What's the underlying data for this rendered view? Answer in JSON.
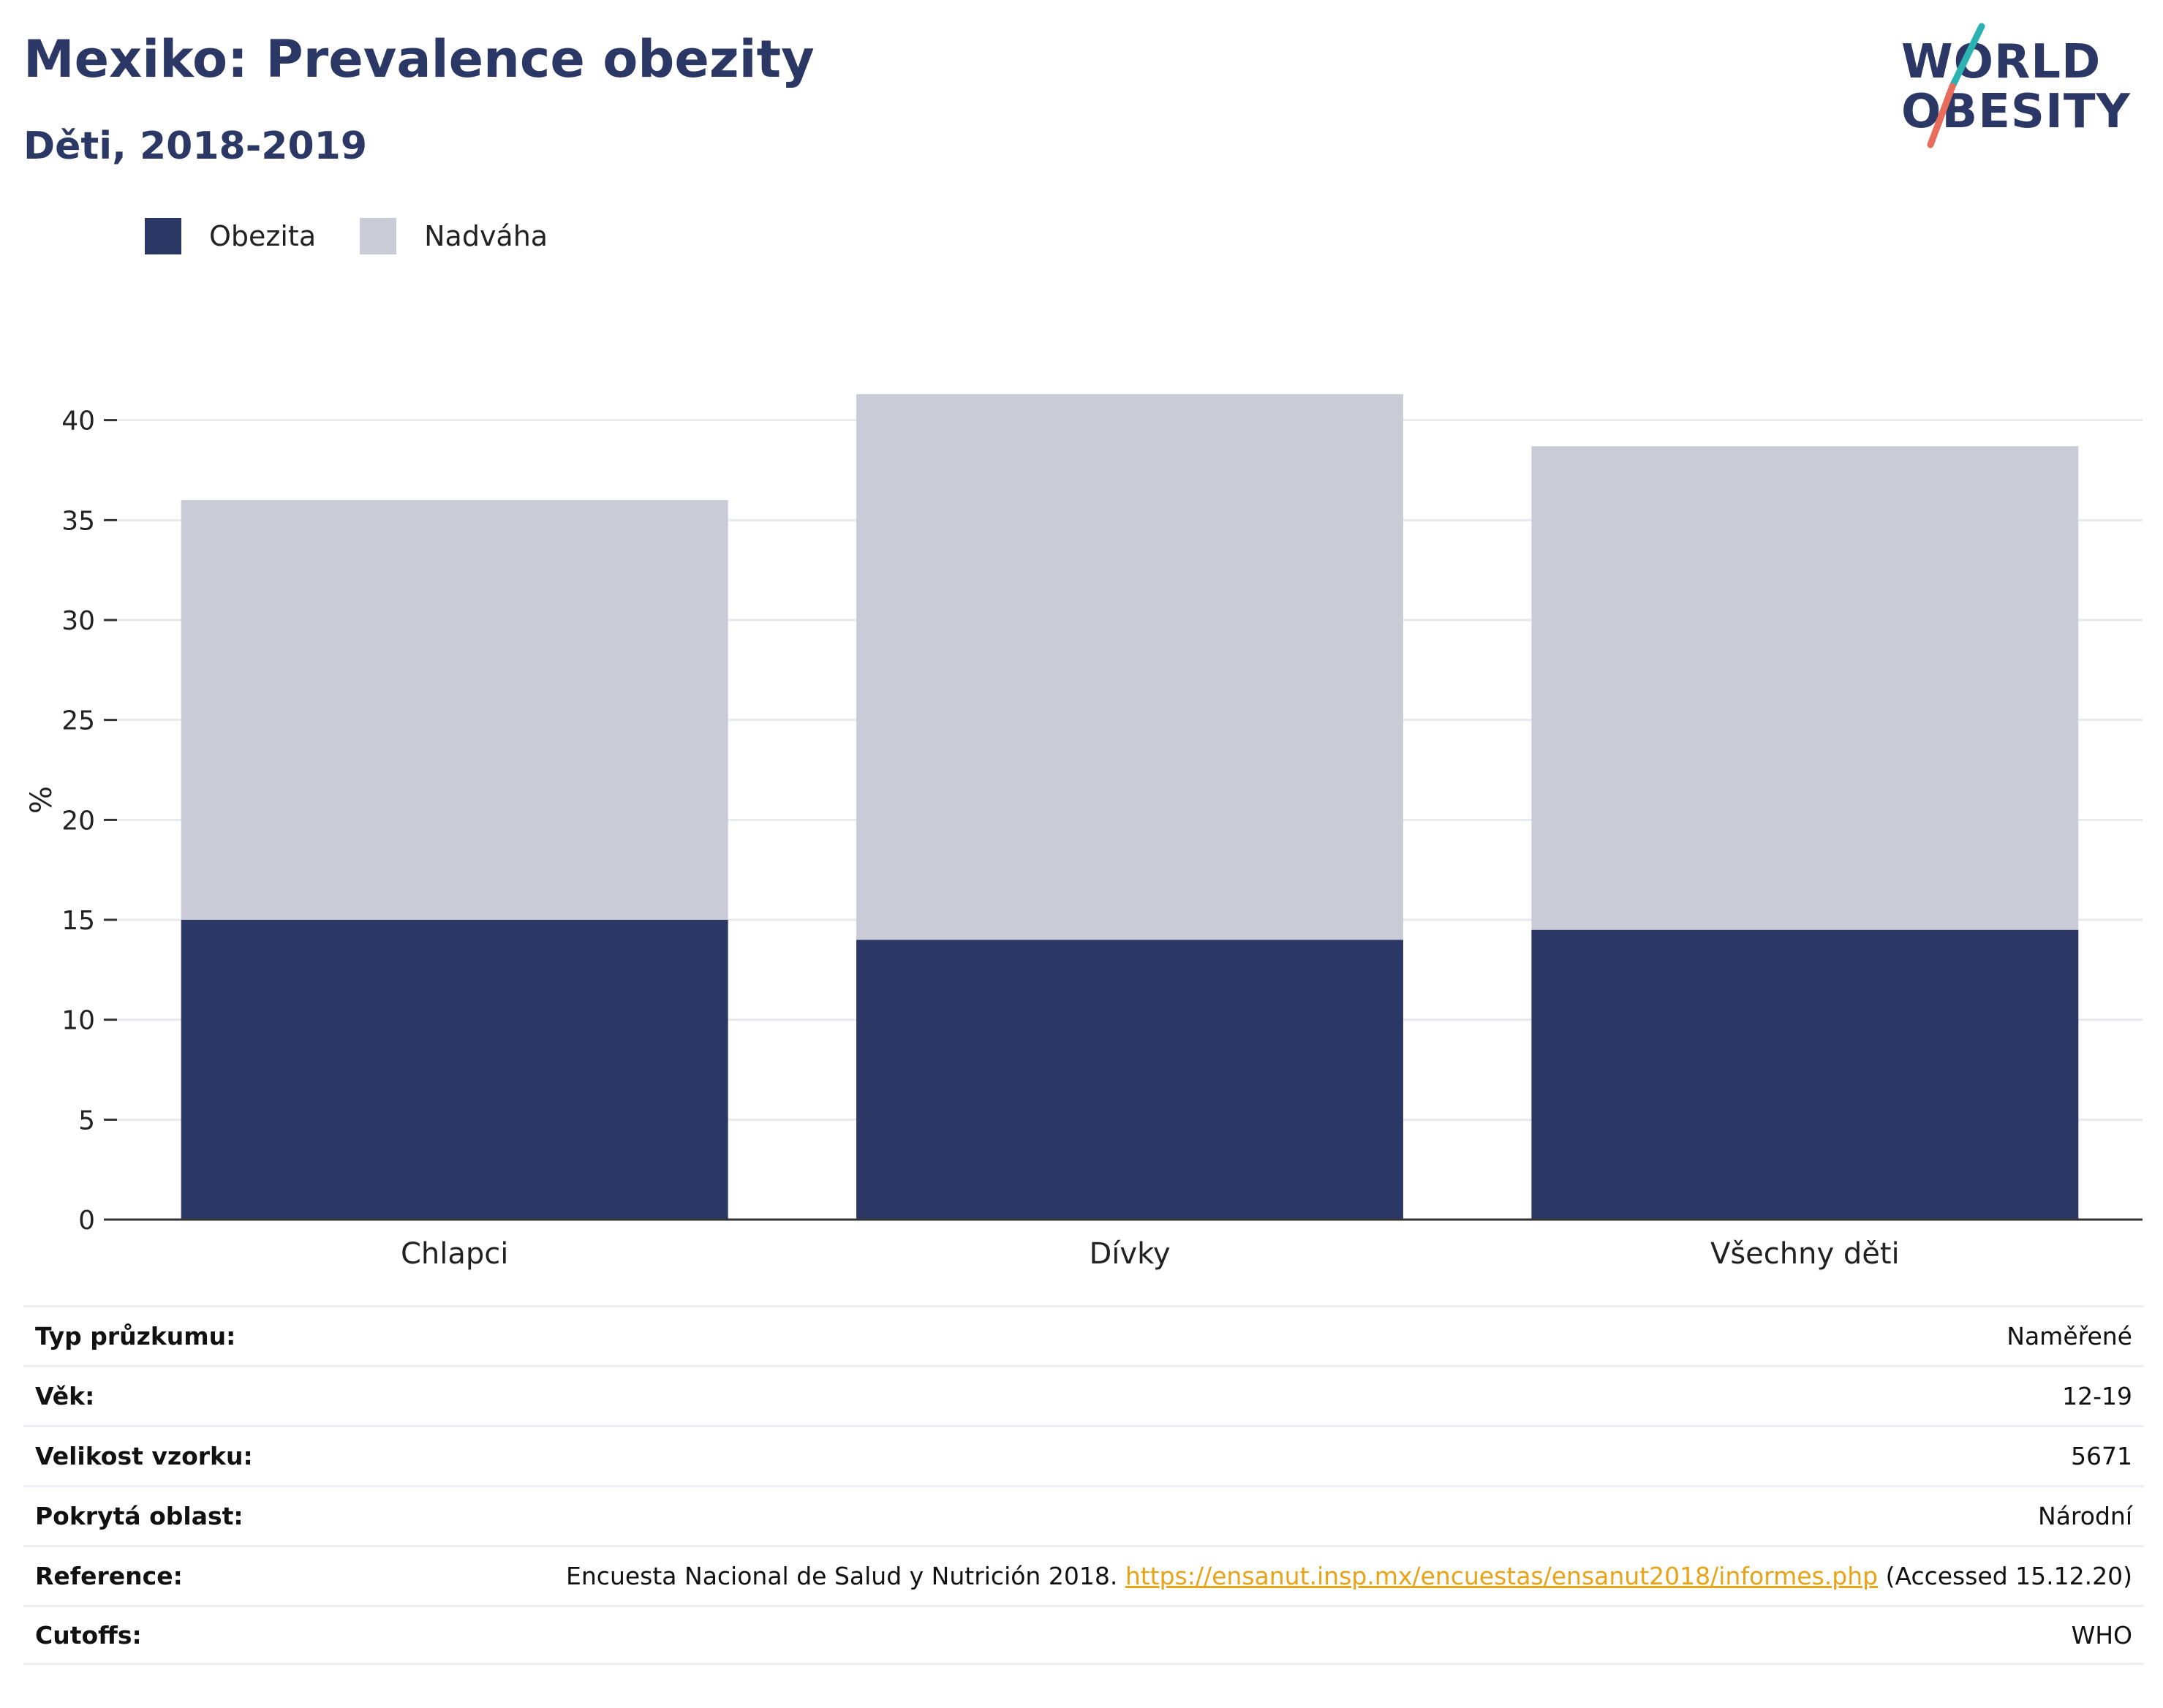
{
  "header": {
    "title": "Mexiko: Prevalence obezity",
    "subtitle": "Děti, 2018-2019"
  },
  "logo": {
    "line1": "WORLD",
    "line2": "OBESITY"
  },
  "colors": {
    "obezita": "#2b3866",
    "nadvaha": "#cacbd7",
    "link": "#e8a317",
    "accent_teal": "#2bb3b1",
    "accent_coral": "#e86d5c"
  },
  "legend": [
    {
      "label": "Obezita",
      "color": "#2b3866"
    },
    {
      "label": "Nadváha",
      "color": "#cacbd7"
    }
  ],
  "chart_data": {
    "type": "bar",
    "stacked": true,
    "categories": [
      "Chlapci",
      "Dívky",
      "Všechny děti"
    ],
    "series": [
      {
        "name": "Obezita",
        "values": [
          15.0,
          14.0,
          14.5
        ]
      },
      {
        "name": "Nadváha",
        "values": [
          21.0,
          27.3,
          24.2
        ]
      }
    ],
    "ylabel": "%",
    "ylim": [
      0,
      42
    ],
    "yticks": [
      0,
      5,
      10,
      15,
      20,
      25,
      30,
      35,
      40
    ],
    "grid": true,
    "legend_position": "top-left"
  },
  "table": {
    "rows": [
      {
        "label": "Typ průzkumu:",
        "value": "Naměřené"
      },
      {
        "label": "Věk:",
        "value": "12-19"
      },
      {
        "label": "Velikost vzorku:",
        "value": "5671"
      },
      {
        "label": "Pokrytá oblast:",
        "value": "Národní"
      }
    ],
    "reference": {
      "label": "Reference:",
      "text_before": "Encuesta Nacional de Salud y Nutrición 2018.",
      "link": "https://ensanut.insp.mx/encuestas/ensanut2018/informes.php",
      "text_after": "(Accessed 15.12.20)"
    },
    "cutoffs": {
      "label": "Cutoffs:",
      "value": "WHO"
    }
  }
}
